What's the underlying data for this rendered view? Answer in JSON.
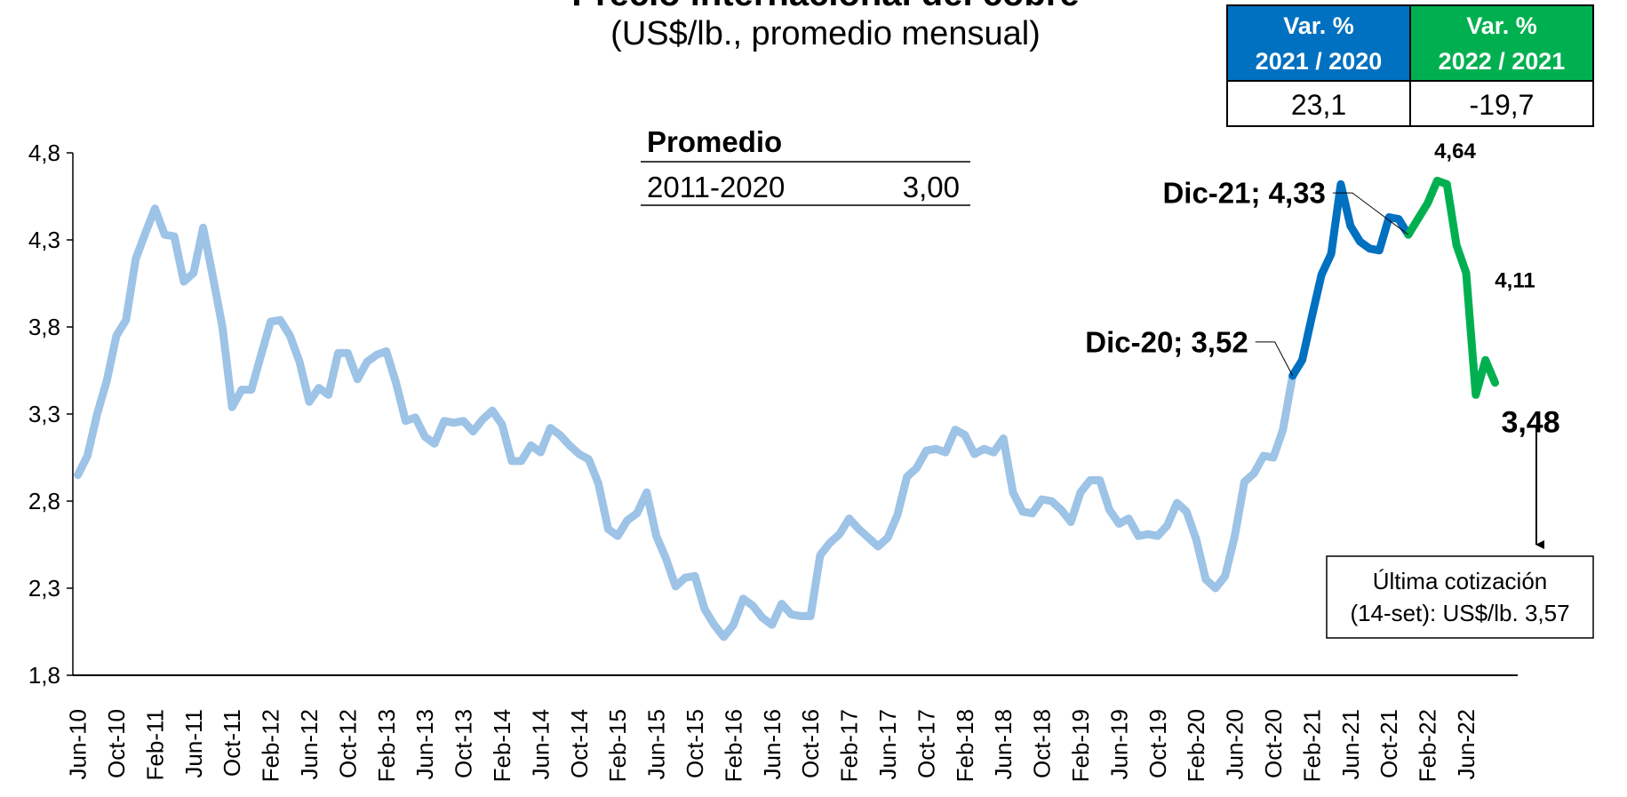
{
  "chart_data": {
    "type": "line",
    "title": "Precio internacional del cobre",
    "subtitle": "(US$/lb., promedio mensual)",
    "categories": [
      "Jun-10",
      null,
      null,
      null,
      "Oct-10",
      null,
      null,
      null,
      "Feb-11",
      null,
      null,
      null,
      "Jun-11",
      null,
      null,
      null,
      "Oct-11",
      null,
      null,
      null,
      "Feb-12",
      null,
      null,
      null,
      "Jun-12",
      null,
      null,
      null,
      "Oct-12",
      null,
      null,
      null,
      "Feb-13",
      null,
      null,
      null,
      "Jun-13",
      null,
      null,
      null,
      "Oct-13",
      null,
      null,
      null,
      "Feb-14",
      null,
      null,
      null,
      "Jun-14",
      null,
      null,
      null,
      "Oct-14",
      null,
      null,
      null,
      "Feb-15",
      null,
      null,
      null,
      "Jun-15",
      null,
      null,
      null,
      "Oct-15",
      null,
      null,
      null,
      "Feb-16",
      null,
      null,
      null,
      "Jun-16",
      null,
      null,
      null,
      "Oct-16",
      null,
      null,
      null,
      "Feb-17",
      null,
      null,
      null,
      "Jun-17",
      null,
      null,
      null,
      "Oct-17",
      null,
      null,
      null,
      "Feb-18",
      null,
      null,
      null,
      "Jun-18",
      null,
      null,
      null,
      "Oct-18",
      null,
      null,
      null,
      "Feb-19",
      null,
      null,
      null,
      "Jun-19",
      null,
      null,
      null,
      "Oct-19",
      null,
      null,
      null,
      "Feb-20",
      null,
      null,
      null,
      "Jun-20",
      null,
      null,
      null,
      "Oct-20",
      null,
      null,
      null,
      "Feb-21",
      null,
      null,
      null,
      "Jun-21",
      null,
      null,
      null,
      "Oct-21",
      null,
      null,
      null,
      "Feb-22",
      null,
      null,
      null,
      "Jun-22",
      null,
      null,
      null
    ],
    "series": [
      {
        "color": "#9dc3e6",
        "values": [
          2.95,
          3.06,
          3.3,
          3.49,
          3.75,
          3.84,
          4.19,
          4.34,
          4.48,
          4.33,
          4.32,
          4.06,
          4.11,
          4.37,
          4.09,
          3.8,
          3.34,
          3.44,
          3.44,
          3.64,
          3.83,
          3.84,
          3.75,
          3.6,
          3.37,
          3.45,
          3.41,
          3.65,
          3.65,
          3.5,
          3.6,
          3.64,
          3.66,
          3.48,
          3.26,
          3.28,
          3.17,
          3.13,
          3.26,
          3.25,
          3.26,
          3.2,
          3.27,
          3.32,
          3.24,
          3.03,
          3.03,
          3.12,
          3.08,
          3.22,
          3.18,
          3.12,
          3.07,
          3.04,
          2.9,
          2.64,
          2.6,
          2.69,
          2.73,
          2.85,
          2.6,
          2.47,
          2.31,
          2.36,
          2.37,
          2.18,
          2.09,
          2.02,
          2.09,
          2.24,
          2.2,
          2.13,
          2.09,
          2.21,
          2.15,
          2.14,
          2.14,
          2.49,
          2.56,
          2.61,
          2.7,
          2.64,
          2.59,
          2.54,
          2.59,
          2.72,
          2.94,
          2.99,
          3.09,
          3.1,
          3.08,
          3.21,
          3.18,
          3.07,
          3.1,
          3.08,
          3.16,
          2.85,
          2.74,
          2.73,
          2.81,
          2.8,
          2.75,
          2.68,
          2.85,
          2.92,
          2.92,
          2.75,
          2.67,
          2.7,
          2.6,
          2.61,
          2.6,
          2.66,
          2.79,
          2.74,
          2.58,
          2.35,
          2.3,
          2.37,
          2.6,
          2.91,
          2.96,
          3.06,
          3.05,
          3.21,
          3.52,
          null,
          null,
          null,
          null,
          null,
          null,
          null,
          null,
          null,
          null,
          null,
          null,
          null,
          null,
          null,
          null,
          null,
          null,
          null,
          null,
          null
        ]
      },
      {
        "color": "#0070c0",
        "values": [
          null,
          null,
          null,
          null,
          null,
          null,
          null,
          null,
          null,
          null,
          null,
          null,
          null,
          null,
          null,
          null,
          null,
          null,
          null,
          null,
          null,
          null,
          null,
          null,
          null,
          null,
          null,
          null,
          null,
          null,
          null,
          null,
          null,
          null,
          null,
          null,
          null,
          null,
          null,
          null,
          null,
          null,
          null,
          null,
          null,
          null,
          null,
          null,
          null,
          null,
          null,
          null,
          null,
          null,
          null,
          null,
          null,
          null,
          null,
          null,
          null,
          null,
          null,
          null,
          null,
          null,
          null,
          null,
          null,
          null,
          null,
          null,
          null,
          null,
          null,
          null,
          null,
          null,
          null,
          null,
          null,
          null,
          null,
          null,
          null,
          null,
          null,
          null,
          null,
          null,
          null,
          null,
          null,
          null,
          null,
          null,
          null,
          null,
          null,
          null,
          null,
          null,
          null,
          null,
          null,
          null,
          null,
          null,
          null,
          null,
          null,
          null,
          null,
          null,
          null,
          null,
          null,
          null,
          null,
          null,
          null,
          null,
          null,
          null,
          null,
          null,
          3.52,
          3.61,
          3.86,
          4.1,
          4.22,
          4.62,
          4.38,
          4.29,
          4.25,
          4.24,
          4.43,
          4.42,
          4.33,
          null,
          null,
          null,
          null,
          null,
          null,
          null,
          null,
          null
        ],
        "value_labels": [
          null,
          null,
          null,
          null,
          null,
          null,
          null,
          null,
          null,
          null,
          null,
          null,
          null,
          null,
          null,
          null,
          null,
          null,
          null,
          null,
          null,
          null,
          null,
          null,
          null,
          null,
          null,
          null,
          null,
          null,
          null,
          null,
          null,
          null,
          null,
          null,
          null,
          null,
          null,
          null,
          null,
          null,
          null,
          null,
          null,
          null,
          null,
          null,
          null,
          null,
          null,
          null,
          null,
          null,
          null,
          null,
          null,
          null,
          null,
          null,
          null,
          null,
          null,
          null,
          null,
          null,
          null,
          null,
          null,
          null,
          null,
          null,
          null,
          null,
          null,
          null,
          null,
          null,
          null,
          null,
          null,
          null,
          null,
          null,
          null,
          null,
          null,
          null,
          null,
          null,
          null,
          null,
          null,
          null,
          null,
          null,
          null,
          null,
          null,
          null,
          null,
          null,
          null,
          null,
          null,
          null,
          null,
          null,
          null,
          null,
          null,
          null,
          null,
          null,
          null,
          null,
          null,
          null,
          null,
          null,
          null,
          null,
          null,
          null,
          null,
          null,
          "Dic-20; 3,52",
          null,
          null,
          null,
          null,
          null,
          null,
          null,
          null,
          null,
          null,
          null,
          "Dic-21; 4,33",
          null,
          null,
          null,
          null,
          null,
          null,
          null,
          null,
          null
        ]
      },
      {
        "color": "#00b050",
        "values": [
          null,
          null,
          null,
          null,
          null,
          null,
          null,
          null,
          null,
          null,
          null,
          null,
          null,
          null,
          null,
          null,
          null,
          null,
          null,
          null,
          null,
          null,
          null,
          null,
          null,
          null,
          null,
          null,
          null,
          null,
          null,
          null,
          null,
          null,
          null,
          null,
          null,
          null,
          null,
          null,
          null,
          null,
          null,
          null,
          null,
          null,
          null,
          null,
          null,
          null,
          null,
          null,
          null,
          null,
          null,
          null,
          null,
          null,
          null,
          null,
          null,
          null,
          null,
          null,
          null,
          null,
          null,
          null,
          null,
          null,
          null,
          null,
          null,
          null,
          null,
          null,
          null,
          null,
          null,
          null,
          null,
          null,
          null,
          null,
          null,
          null,
          null,
          null,
          null,
          null,
          null,
          null,
          null,
          null,
          null,
          null,
          null,
          null,
          null,
          null,
          null,
          null,
          null,
          null,
          null,
          null,
          null,
          null,
          null,
          null,
          null,
          null,
          null,
          null,
          null,
          null,
          null,
          null,
          null,
          null,
          null,
          null,
          null,
          null,
          null,
          null,
          null,
          null,
          null,
          null,
          null,
          null,
          null,
          null,
          null,
          null,
          null,
          null,
          4.33,
          4.42,
          4.51,
          4.64,
          4.62,
          4.27,
          4.11,
          3.41,
          3.61,
          3.48
        ],
        "value_labels": [
          null,
          null,
          null,
          null,
          null,
          null,
          null,
          null,
          null,
          null,
          null,
          null,
          null,
          null,
          null,
          null,
          null,
          null,
          null,
          null,
          null,
          null,
          null,
          null,
          null,
          null,
          null,
          null,
          null,
          null,
          null,
          null,
          null,
          null,
          null,
          null,
          null,
          null,
          null,
          null,
          null,
          null,
          null,
          null,
          null,
          null,
          null,
          null,
          null,
          null,
          null,
          null,
          null,
          null,
          null,
          null,
          null,
          null,
          null,
          null,
          null,
          null,
          null,
          null,
          null,
          null,
          null,
          null,
          null,
          null,
          null,
          null,
          null,
          null,
          null,
          null,
          null,
          null,
          null,
          null,
          null,
          null,
          null,
          null,
          null,
          null,
          null,
          null,
          null,
          null,
          null,
          null,
          null,
          null,
          null,
          null,
          null,
          null,
          null,
          null,
          null,
          null,
          null,
          null,
          null,
          null,
          null,
          null,
          null,
          null,
          null,
          null,
          null,
          null,
          null,
          null,
          null,
          null,
          null,
          null,
          null,
          null,
          null,
          null,
          null,
          null,
          null,
          null,
          null,
          null,
          null,
          null,
          null,
          null,
          null,
          null,
          null,
          null,
          null,
          null,
          null,
          "4,64",
          null,
          null,
          "4,11",
          null,
          null,
          "3,48"
        ]
      }
    ],
    "ylim": [
      1.8,
      4.8
    ],
    "yticks": [
      {
        "value": 1.8,
        "label": "1,8"
      },
      {
        "value": 2.3,
        "label": "2,3"
      },
      {
        "value": 2.8,
        "label": "2,8"
      },
      {
        "value": 3.3,
        "label": "3,3"
      },
      {
        "value": 3.8,
        "label": "3,8"
      },
      {
        "value": 4.3,
        "label": "4,3"
      },
      {
        "value": 4.8,
        "label": "4,8"
      }
    ],
    "grid": false,
    "var_table": {
      "headers": [
        [
          "Var. %",
          "2021 / 2020"
        ],
        [
          "Var. %",
          "2022 / 2021"
        ]
      ],
      "values": [
        "23,1",
        "-19,7"
      ]
    },
    "average_box": {
      "title": "Promedio",
      "period": "2011-2020",
      "value": "3,00"
    },
    "note": [
      "Última cotización",
      "(14-set): US$/lb. 3,57"
    ]
  }
}
